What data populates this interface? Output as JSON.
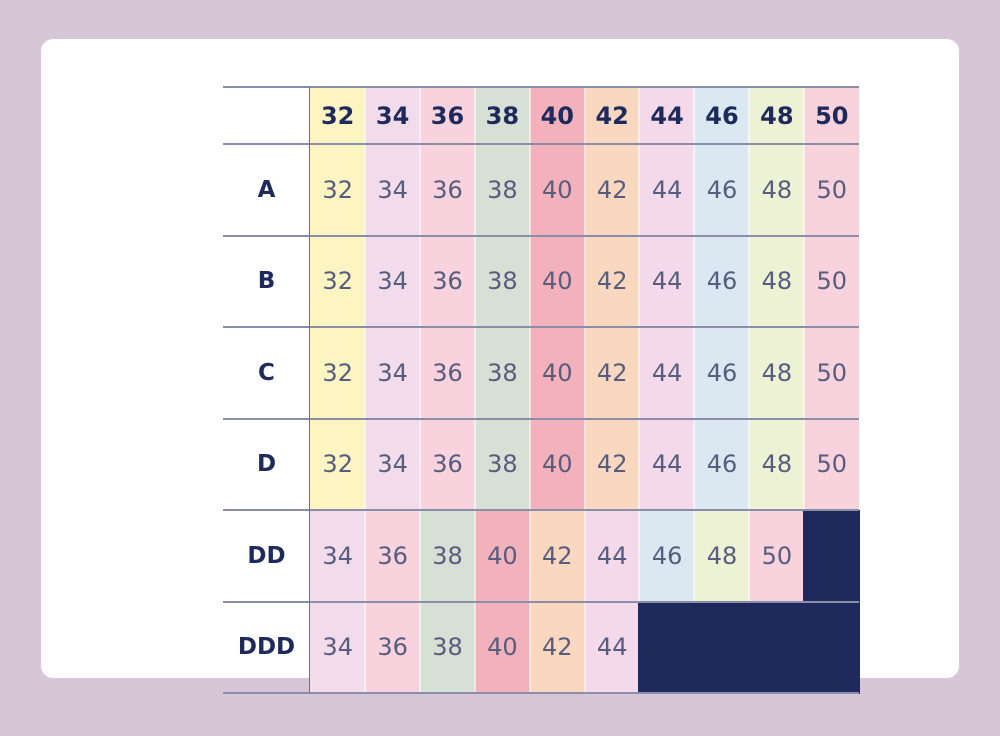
{
  "chart_data": {
    "type": "table",
    "columns": [
      "32",
      "34",
      "36",
      "38",
      "40",
      "42",
      "44",
      "46",
      "48",
      "50"
    ],
    "rows": [
      {
        "label": "A",
        "values": [
          "32",
          "34",
          "36",
          "38",
          "40",
          "42",
          "44",
          "46",
          "48",
          "50"
        ]
      },
      {
        "label": "B",
        "values": [
          "32",
          "34",
          "36",
          "38",
          "40",
          "42",
          "44",
          "46",
          "48",
          "50"
        ]
      },
      {
        "label": "C",
        "values": [
          "32",
          "34",
          "36",
          "38",
          "40",
          "42",
          "44",
          "46",
          "48",
          "50"
        ]
      },
      {
        "label": "D",
        "values": [
          "32",
          "34",
          "36",
          "38",
          "40",
          "42",
          "44",
          "46",
          "48",
          "50"
        ]
      },
      {
        "label": "DD",
        "values": [
          "34",
          "36",
          "38",
          "40",
          "42",
          "44",
          "46",
          "48",
          "50",
          null
        ]
      },
      {
        "label": "DDD",
        "values": [
          "34",
          "36",
          "38",
          "40",
          "42",
          "44",
          null,
          null,
          null,
          null
        ]
      }
    ],
    "value_colors": {
      "32": "#fcf5c2",
      "34": "#f2dbea",
      "36": "#f8d2dc",
      "38": "#d6e0d5",
      "40": "#f3b2bb",
      "42": "#fad8bf",
      "44": "#f3d9ea",
      "46": "#dbe8f2",
      "48": "#eef2d5",
      "50": "#f8d2dc"
    },
    "empty_color": "#1f2a5c"
  }
}
